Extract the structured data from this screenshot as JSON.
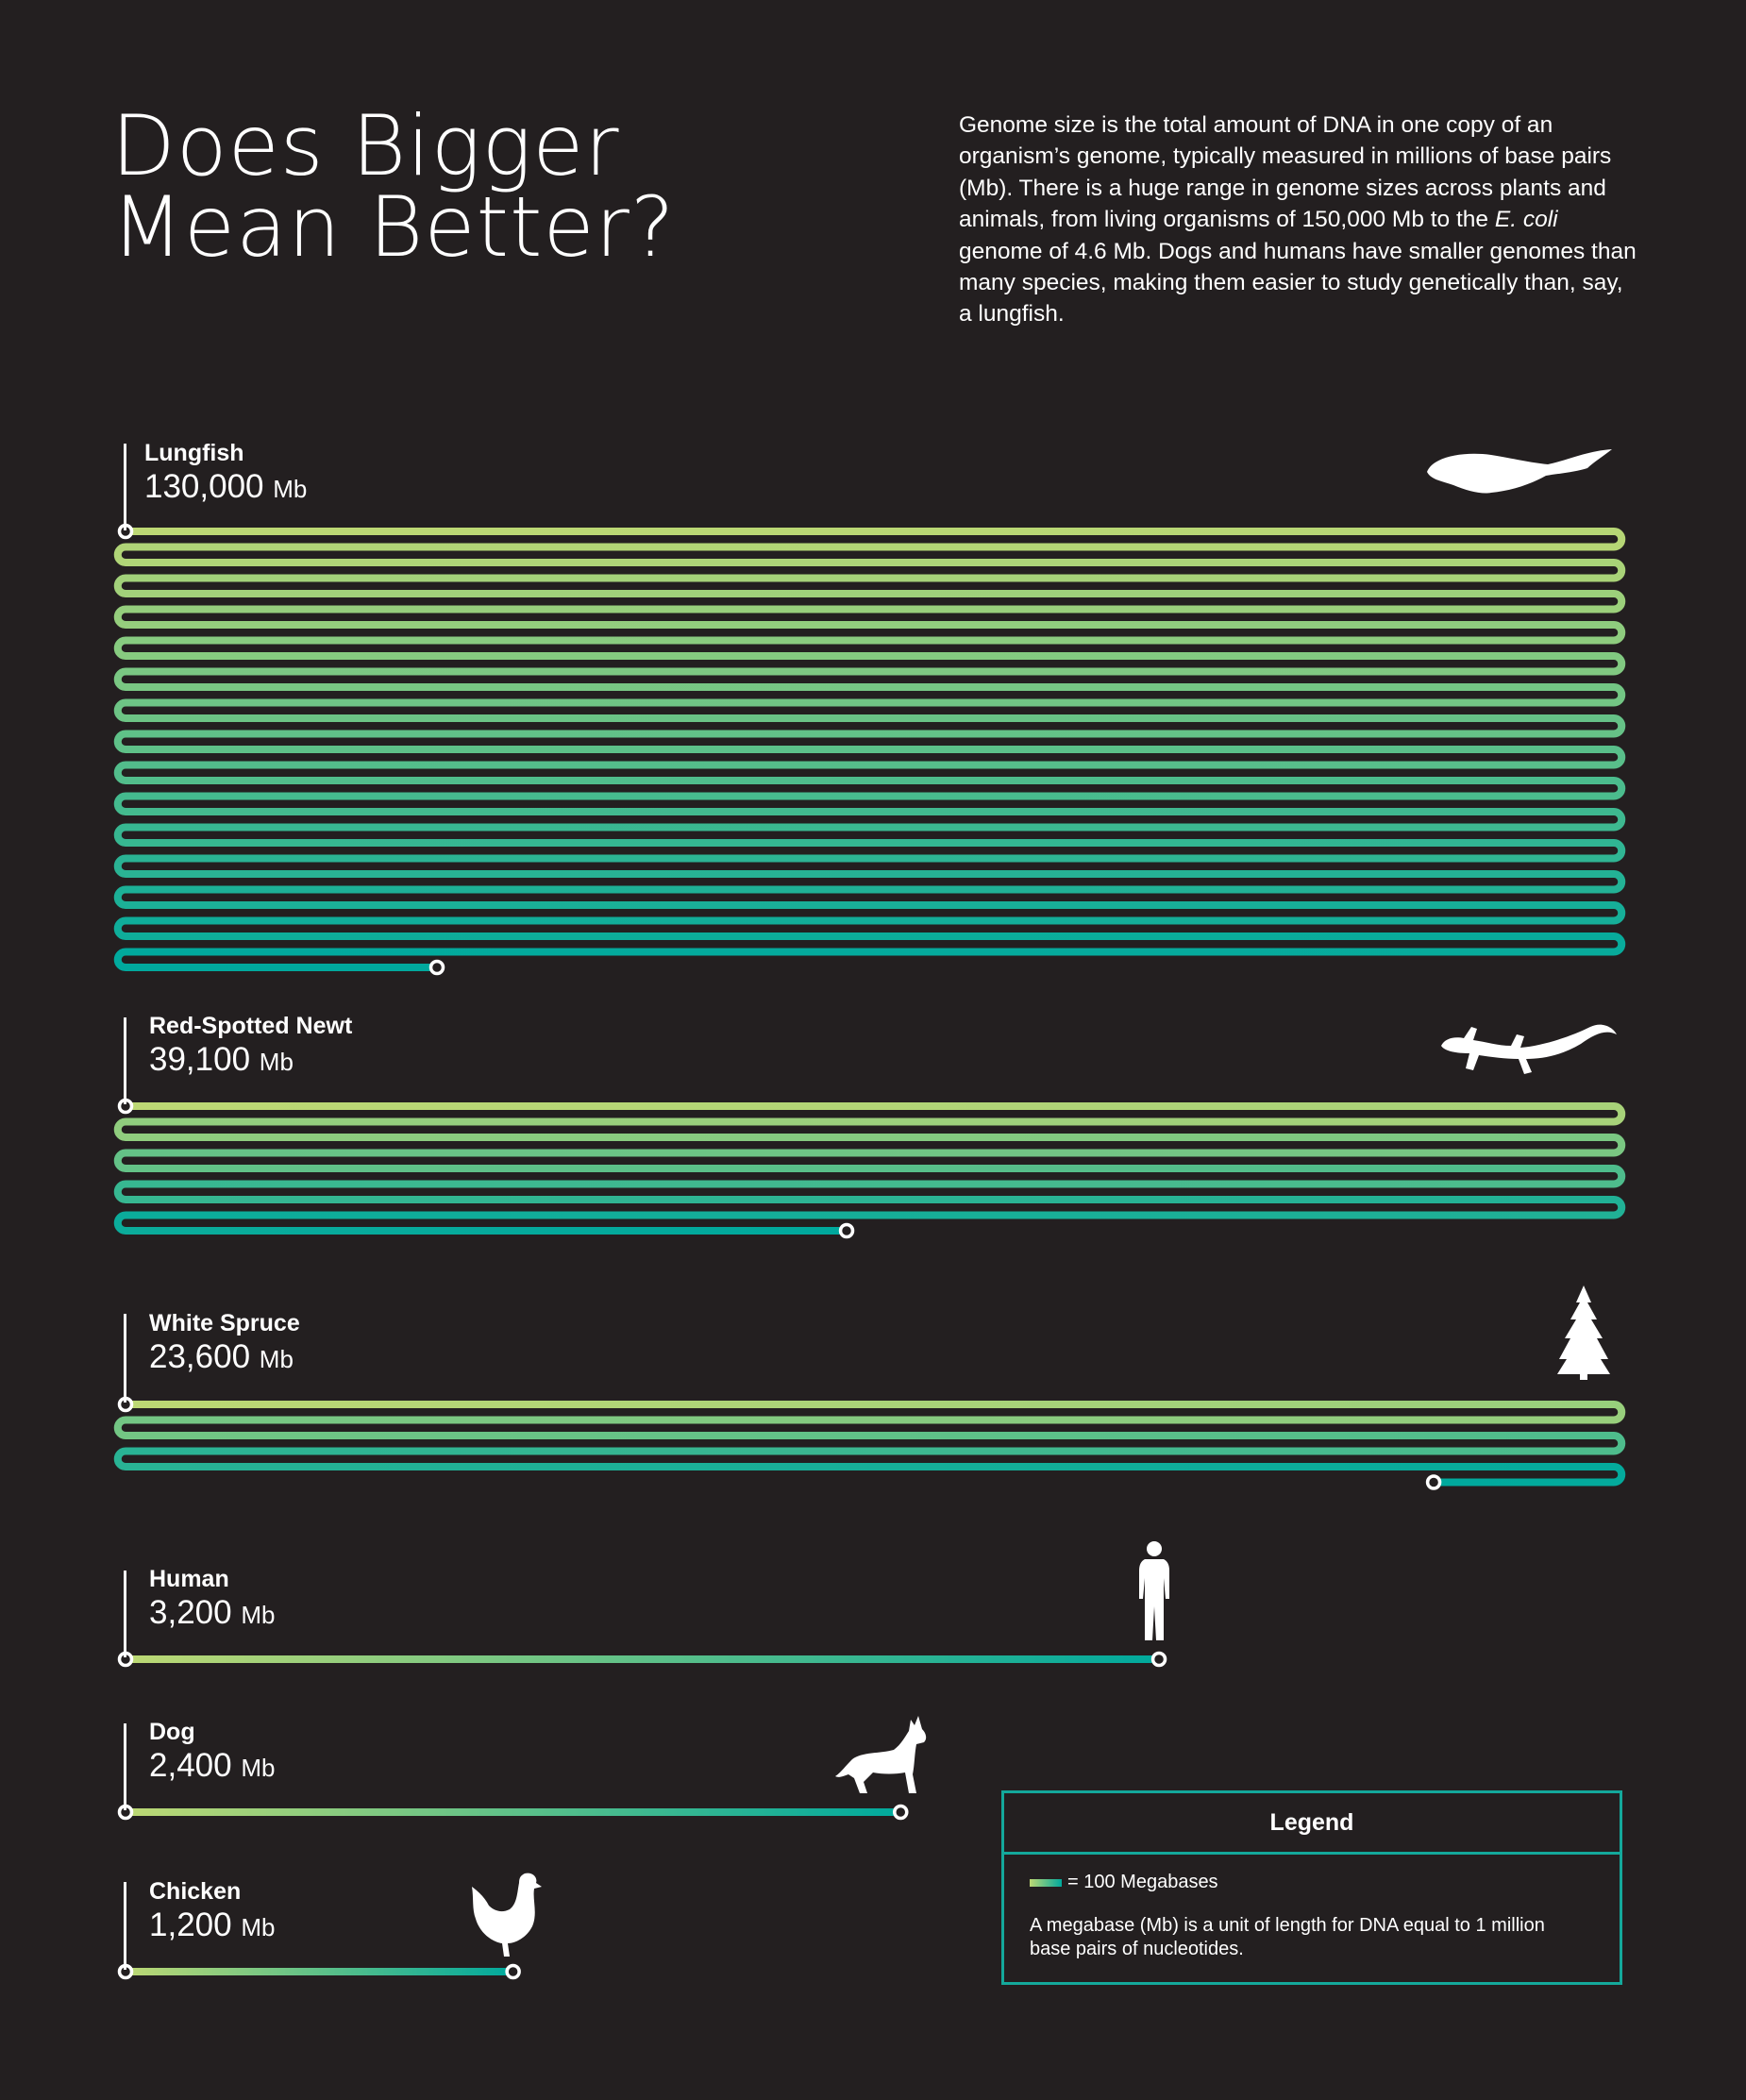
{
  "header": {
    "title_line1": "Does Bigger",
    "title_line2": "Mean Better?",
    "description_part1": "Genome size is the total amount of DNA in one copy of an organism’s genome, typically measured in millions of base pairs (Mb). There is a huge range in genome sizes across plants and animals, from living organisms of 150,000 Mb to the ",
    "description_italic": "E. coli",
    "description_part2": " genome of 4.6 Mb. Dogs and humans have smaller genomes than many species, making them easier to study genetically than, say, a lungfish."
  },
  "chart_data": {
    "type": "bar",
    "title": "Does Bigger Mean Better?",
    "categories": [
      "Lungfish",
      "Red-Spotted Newt",
      "White Spruce",
      "Human",
      "Dog",
      "Chicken"
    ],
    "values": [
      130000,
      39100,
      23600,
      3200,
      2400,
      1200
    ],
    "value_labels": [
      "130,000",
      "39,100",
      "23,600",
      "3,200",
      "2,400",
      "1,200"
    ],
    "unit": "Mb",
    "icons": [
      "lungfish-icon",
      "newt-icon",
      "spruce-tree-icon",
      "human-icon",
      "dog-icon",
      "chicken-icon"
    ],
    "colors": {
      "start": "#bdd874",
      "end": "#00a99d",
      "background": "#231f20"
    }
  },
  "legend": {
    "title": "Legend",
    "swatch_label": "= 100 Megabases",
    "note": "A megabase (Mb) is a unit of length for DNA equal to 1 million base pairs of nucleotides."
  }
}
